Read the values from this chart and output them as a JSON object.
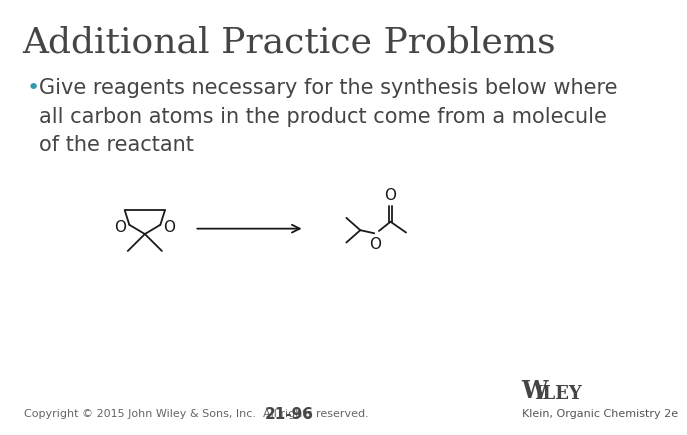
{
  "title": "Additional Practice Problems",
  "title_color": "#454545",
  "title_fontsize": 26,
  "bullet_color": "#3399AA",
  "bullet_fontsize": 15,
  "bullet_text": "Give reagents necessary for the synthesis below where\nall carbon atoms in the product come from a molecule\nof the reactant",
  "body_color": "#454545",
  "background_color": "#ffffff",
  "footer_left": "Copyright © 2015 John Wiley & Sons, Inc.  All rights reserved.",
  "footer_center": "21-96",
  "footer_right": "Klein, Organic Chemistry 2e",
  "footer_fontsize": 8,
  "line_color": "#1a1a1a",
  "line_width": 1.3
}
